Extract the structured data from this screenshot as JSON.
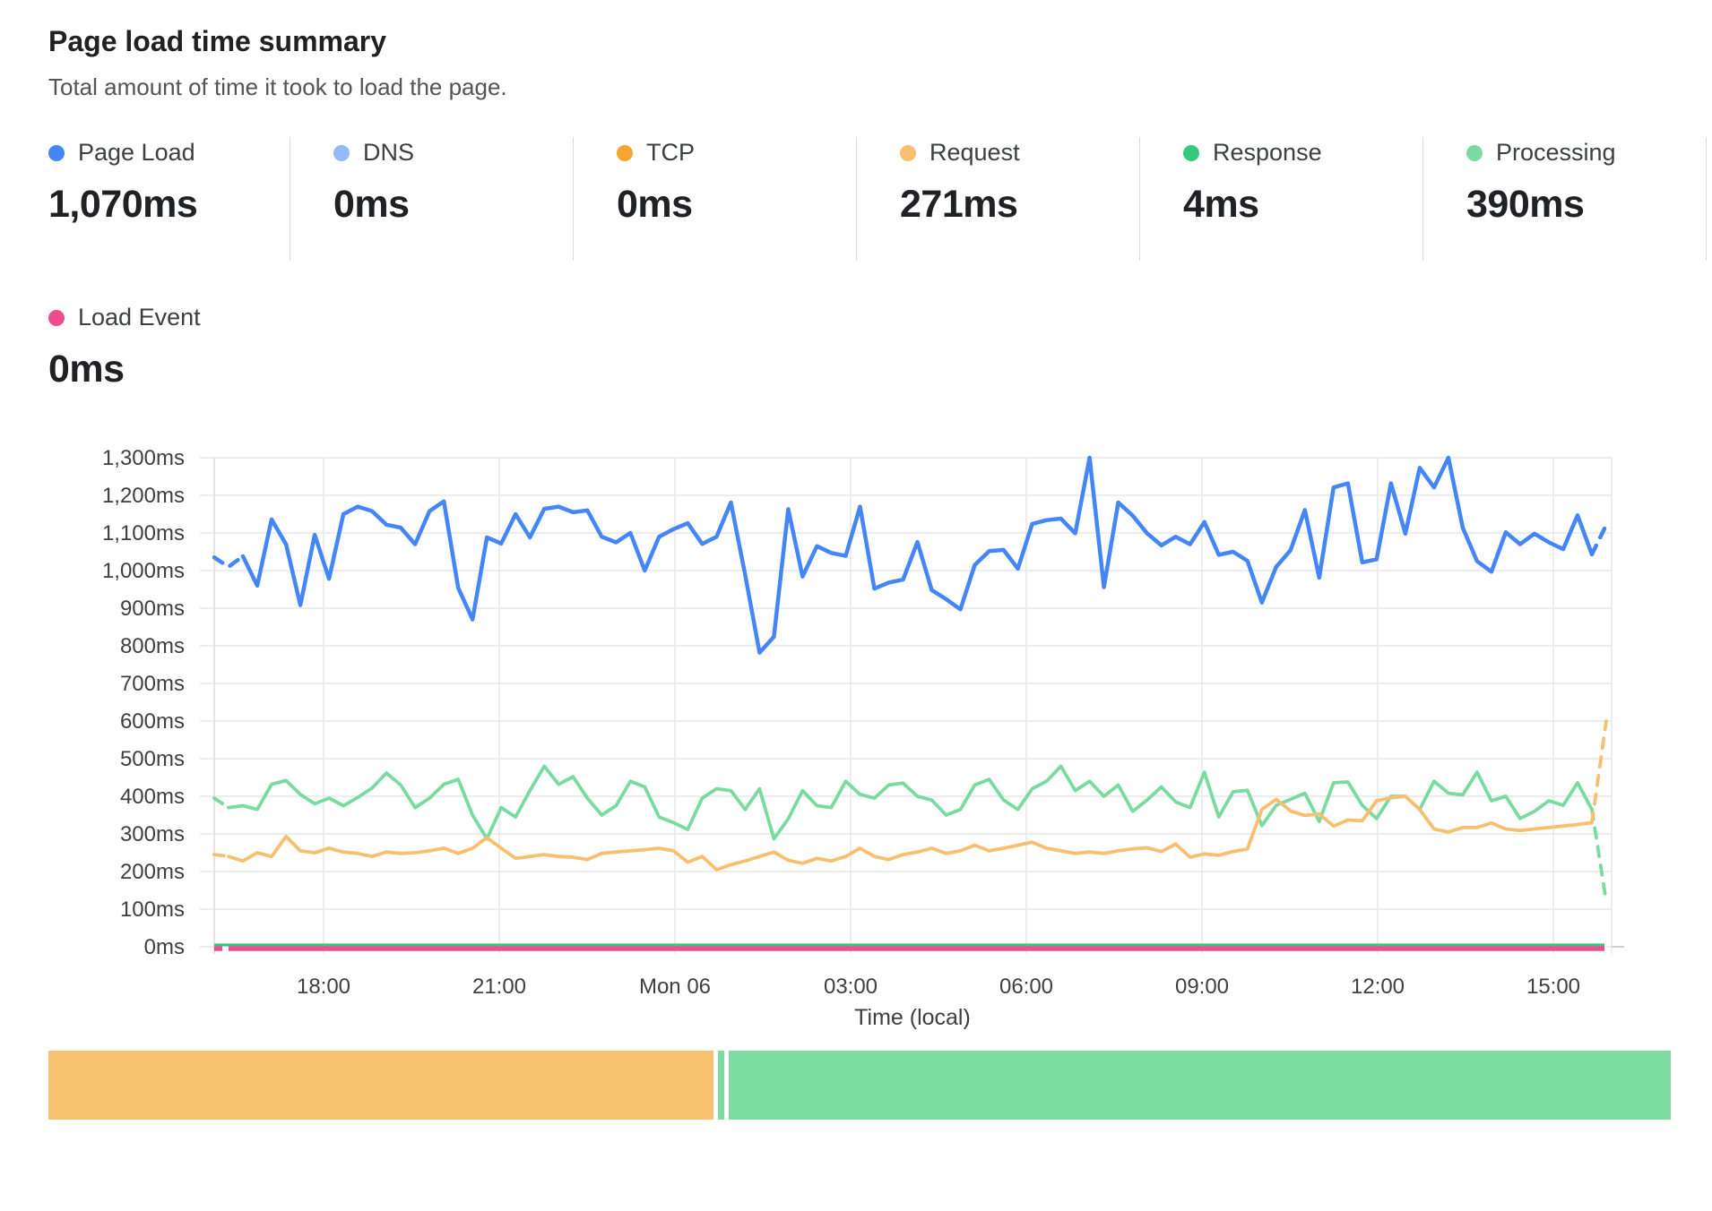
{
  "header": {
    "title": "Page load time summary",
    "subtitle": "Total amount of time it took to load the page."
  },
  "metrics": [
    {
      "label": "Page Load",
      "value": "1,070ms",
      "color": "#4486f5"
    },
    {
      "label": "DNS",
      "value": "0ms",
      "color": "#92b9f9"
    },
    {
      "label": "TCP",
      "value": "0ms",
      "color": "#f6a532"
    },
    {
      "label": "Request",
      "value": "271ms",
      "color": "#f8c06e"
    },
    {
      "label": "Response",
      "value": "4ms",
      "color": "#36c97e"
    },
    {
      "label": "Processing",
      "value": "390ms",
      "color": "#79dba0"
    }
  ],
  "load_event": {
    "label": "Load Event",
    "value": "0ms",
    "color": "#ed4d8e"
  },
  "chart_data": {
    "type": "line",
    "title": "Page load time summary",
    "xlabel": "Time (local)",
    "ylabel": "",
    "ylim": [
      0,
      1300
    ],
    "y_tick_step_ms": 100,
    "grid": true,
    "legend_position": "top-metric-cards",
    "y_ticks": [
      "1,300ms",
      "1,200ms",
      "1,100ms",
      "1,000ms",
      "900ms",
      "800ms",
      "700ms",
      "600ms",
      "500ms",
      "400ms",
      "300ms",
      "200ms",
      "100ms",
      "0ms"
    ],
    "x_ticks": [
      "18:00",
      "21:00",
      "Mon 06",
      "03:00",
      "06:00",
      "09:00",
      "12:00",
      "15:00"
    ],
    "series": [
      {
        "name": "Processing",
        "color": "#79dba0",
        "width": 3.8,
        "dash_start": 1,
        "dash_end": 1,
        "values": [
          395,
          370,
          375,
          365,
          432,
          442,
          405,
          380,
          395,
          375,
          397,
          422,
          462,
          430,
          370,
          395,
          432,
          445,
          350,
          287,
          370,
          345,
          415,
          480,
          432,
          452,
          395,
          350,
          375,
          440,
          425,
          345,
          330,
          312,
          395,
          420,
          415,
          365,
          420,
          287,
          340,
          415,
          375,
          370,
          440,
          405,
          395,
          430,
          435,
          400,
          390,
          350,
          365,
          430,
          445,
          390,
          365,
          420,
          440,
          480,
          415,
          440,
          400,
          430,
          360,
          390,
          425,
          385,
          370,
          464,
          345,
          412,
          416,
          322,
          376,
          392,
          408,
          333,
          436,
          438,
          376,
          341,
          400,
          400,
          365,
          440,
          408,
          404,
          464,
          388,
          400,
          341,
          360,
          388,
          376,
          436,
          365,
          120
        ]
      },
      {
        "name": "Request",
        "color": "#f8c06e",
        "width": 3.8,
        "dash_start": 1,
        "dash_end": 1,
        "values": [
          245,
          240,
          228,
          250,
          240,
          293,
          255,
          250,
          262,
          252,
          248,
          240,
          252,
          248,
          250,
          255,
          262,
          248,
          262,
          290,
          262,
          235,
          240,
          245,
          240,
          238,
          232,
          248,
          252,
          255,
          258,
          262,
          255,
          225,
          240,
          205,
          218,
          228,
          240,
          252,
          230,
          222,
          235,
          228,
          240,
          262,
          240,
          232,
          245,
          252,
          262,
          248,
          255,
          270,
          255,
          262,
          270,
          278,
          262,
          255,
          248,
          252,
          248,
          255,
          260,
          263,
          253,
          273,
          238,
          247,
          243,
          253,
          260,
          365,
          392,
          361,
          349,
          353,
          321,
          337,
          335,
          388,
          396,
          400,
          365,
          313,
          305,
          317,
          317,
          329,
          313,
          309,
          313,
          317,
          321,
          325,
          330,
          600
        ]
      },
      {
        "name": "Response",
        "color": "#36c97e",
        "width": 3,
        "constant": 4
      },
      {
        "name": "Load Event",
        "color": "#ed4d8e",
        "width": 5.5,
        "constant": 0,
        "start_dash": true
      },
      {
        "name": "DNS",
        "color": "#92b9f9",
        "constant": 0,
        "hidden": true
      },
      {
        "name": "TCP",
        "color": "#f6a532",
        "constant": 0,
        "hidden": true
      },
      {
        "name": "Page Load",
        "color": "#4486f5",
        "width": 4.5,
        "dash_start": 2,
        "dash_end": 1,
        "values": [
          1035,
          1010,
          1038,
          960,
          1136,
          1070,
          908,
          1095,
          978,
          1150,
          1170,
          1158,
          1122,
          1114,
          1070,
          1158,
          1184,
          954,
          870,
          1088,
          1072,
          1150,
          1088,
          1164,
          1170,
          1155,
          1160,
          1090,
          1075,
          1100,
          1000,
          1090,
          1110,
          1126,
          1071,
          1090,
          1181,
          988,
          782,
          824,
          1163,
          984,
          1065,
          1047,
          1039,
          1170,
          952,
          968,
          976,
          1076,
          948,
          924,
          897,
          1015,
          1052,
          1055,
          1005,
          1124,
          1134,
          1138,
          1099,
          1300,
          956,
          1181,
          1146,
          1099,
          1067,
          1090,
          1070,
          1129,
          1042,
          1050,
          1026,
          915,
          1010,
          1054,
          1161,
          981,
          1221,
          1232,
          1022,
          1030,
          1232,
          1098,
          1273,
          1221,
          1300,
          1114,
          1025,
          997,
          1102,
          1070,
          1098,
          1075,
          1057,
          1147,
          1043,
          1121
        ]
      }
    ]
  },
  "timeline_bar": {
    "segments": [
      {
        "name": "segment-1",
        "color": "#f8c271",
        "width_pct": 40.9
      },
      {
        "name": "segment-2",
        "color": "#7ddc9f",
        "width_pct": 0.38
      },
      {
        "name": "segment-3",
        "color": "#7ddc9f",
        "width_pct": 57.9
      }
    ]
  }
}
